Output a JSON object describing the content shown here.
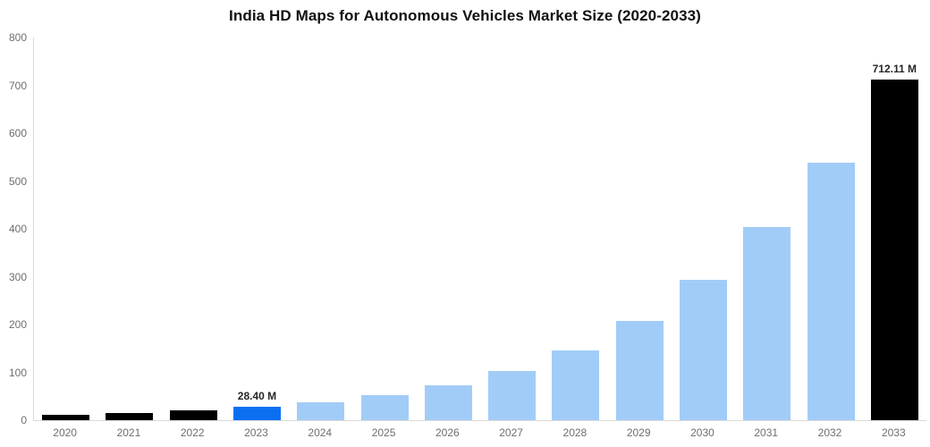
{
  "title": "India HD Maps for Autonomous Vehicles Market Size (2020-2033)",
  "chart_data": {
    "type": "bar",
    "title": "India HD Maps for Autonomous Vehicles Market Size (2020-2033)",
    "unit": "M",
    "categories": [
      "2020",
      "2021",
      "2022",
      "2023",
      "2024",
      "2025",
      "2026",
      "2027",
      "2028",
      "2029",
      "2030",
      "2031",
      "2032",
      "2033"
    ],
    "values": [
      10.8,
      15,
      20.6,
      28.4,
      38,
      53,
      73,
      103,
      146,
      207,
      293,
      403,
      538,
      712.11
    ],
    "bar_labels": {
      "2023": "28.40 M",
      "2033": "712.11 M"
    },
    "bar_colors": [
      "#000000",
      "#000000",
      "#000000",
      "#0b6ff2",
      "#a2ccf8",
      "#a2ccf8",
      "#a2ccf8",
      "#a2ccf8",
      "#a2ccf8",
      "#a2ccf8",
      "#a2ccf8",
      "#a2ccf8",
      "#a2ccf8",
      "#000000"
    ],
    "ylim": [
      0,
      800
    ],
    "yticks": [
      0,
      100,
      200,
      300,
      400,
      500,
      600,
      700,
      800
    ],
    "xlabel": "",
    "ylabel": "",
    "grid": false,
    "legend": false,
    "colors": {
      "bar_black": "#000000",
      "bar_highlight_blue": "#0b6ff2",
      "bar_forecast_blue": "#a2ccf8",
      "axis_line": "#d9d9d9",
      "tick_text": "#6e6e6e",
      "value_label_text": "#262626",
      "title_text": "#111111",
      "background": "#ffffff"
    }
  }
}
